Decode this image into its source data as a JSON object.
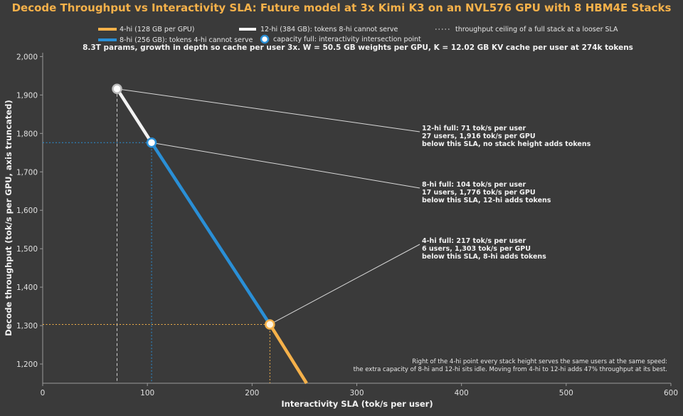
{
  "chart_data": {
    "type": "line",
    "title": "Decode Throughput vs Interactivity SLA: Future model at 3x Kimi K3 on an NVL576 GPU with 8 HBM4E Stacks",
    "subtitle": "8.3T params, growth in depth so cache per user 3x. W = 50.5 GB weights per GPU, K = 12.02 GB KV cache per user at 274k tokens",
    "xlabel": "Interactivity SLA (tok/s per user)",
    "ylabel": "Decode throughput (tok/s per GPU, axis truncated)",
    "xlim": [
      0,
      600
    ],
    "ylim": [
      1150,
      2010
    ],
    "x_ticks": [
      0,
      100,
      200,
      300,
      400,
      500,
      600
    ],
    "x_tick_labels": [
      "0",
      "100",
      "200",
      "300",
      "400",
      "500",
      "600"
    ],
    "y_ticks": [
      1200,
      1300,
      1400,
      1500,
      1600,
      1700,
      1800,
      1900,
      2000
    ],
    "y_tick_labels": [
      "1,200",
      "1,300",
      "1,400",
      "1,500",
      "1,600",
      "1,700",
      "1,800",
      "1,900",
      "2,000"
    ],
    "legend": {
      "placement": "top",
      "items": [
        {
          "label": "4-hi (128 GB per GPU)",
          "kind": "line",
          "color": "#f5b14a"
        },
        {
          "label": "12-hi (384 GB): tokens 8-hi cannot serve",
          "kind": "line",
          "color": "#f2f2f2"
        },
        {
          "label": "throughput ceiling of a full stack at a looser SLA",
          "kind": "dotted",
          "color": "#cfcfcf"
        },
        {
          "label": "8-hi (256 GB): tokens 4-hi cannot serve",
          "kind": "line",
          "color": "#2a8fd6"
        },
        {
          "label": "capacity full: interactivity intersection point",
          "kind": "marker",
          "color": "#2a8fd6"
        }
      ]
    },
    "series": [
      {
        "name": "12-hi (384 GB): tokens 8-hi cannot serve",
        "color": "#f2f2f2",
        "points": [
          [
            71,
            1916
          ],
          [
            104,
            1776
          ]
        ]
      },
      {
        "name": "8-hi (256 GB): tokens 4-hi cannot serve",
        "color": "#2a8fd6",
        "points": [
          [
            104,
            1776
          ],
          [
            217,
            1303
          ]
        ]
      },
      {
        "name": "4-hi (128 GB per GPU)",
        "color": "#f5b14a",
        "points": [
          [
            217,
            1303
          ],
          [
            252,
            1150
          ]
        ]
      }
    ],
    "intersection_points": [
      {
        "x": 71,
        "y": 1916,
        "fill": "#ffffff",
        "edge": "#bdbdbd"
      },
      {
        "x": 104,
        "y": 1776,
        "fill": "#ffffff",
        "edge": "#2a8fd6"
      },
      {
        "x": 217,
        "y": 1303,
        "fill": "#fff3dc",
        "edge": "#f5b14a"
      }
    ],
    "ceiling_guides": [
      {
        "x": 71,
        "y": 1916,
        "vertical": true,
        "horizontal": false,
        "color": "#cfcfcf"
      },
      {
        "x": 104,
        "y": 1776,
        "vertical": true,
        "horizontal": true,
        "color": "#2a8fd6"
      },
      {
        "x": 217,
        "y": 1303,
        "vertical": true,
        "horizontal": true,
        "color": "#f5b14a"
      }
    ],
    "annotations": [
      {
        "point": [
          71,
          1916
        ],
        "lines": [
          "12-hi full: 71 tok/s per user",
          "27 users, 1,916 tok/s per GPU",
          "below this SLA, no stack height adds tokens"
        ]
      },
      {
        "point": [
          104,
          1776
        ],
        "lines": [
          "8-hi full: 104 tok/s per user",
          "17 users, 1,776 tok/s per GPU",
          "below this SLA, 12-hi adds tokens"
        ]
      },
      {
        "point": [
          217,
          1303
        ],
        "lines": [
          "4-hi full: 217 tok/s per user",
          "6 users, 1,303 tok/s per GPU",
          "below this SLA, 8-hi adds tokens"
        ]
      }
    ],
    "footnote": [
      "Right of the 4-hi point every stack height serves the same users at the same speed:",
      "the extra capacity of 8-hi and 12-hi sits idle. Moving from 4-hi to 12-hi adds 47% throughput at its best."
    ],
    "grid": false
  }
}
